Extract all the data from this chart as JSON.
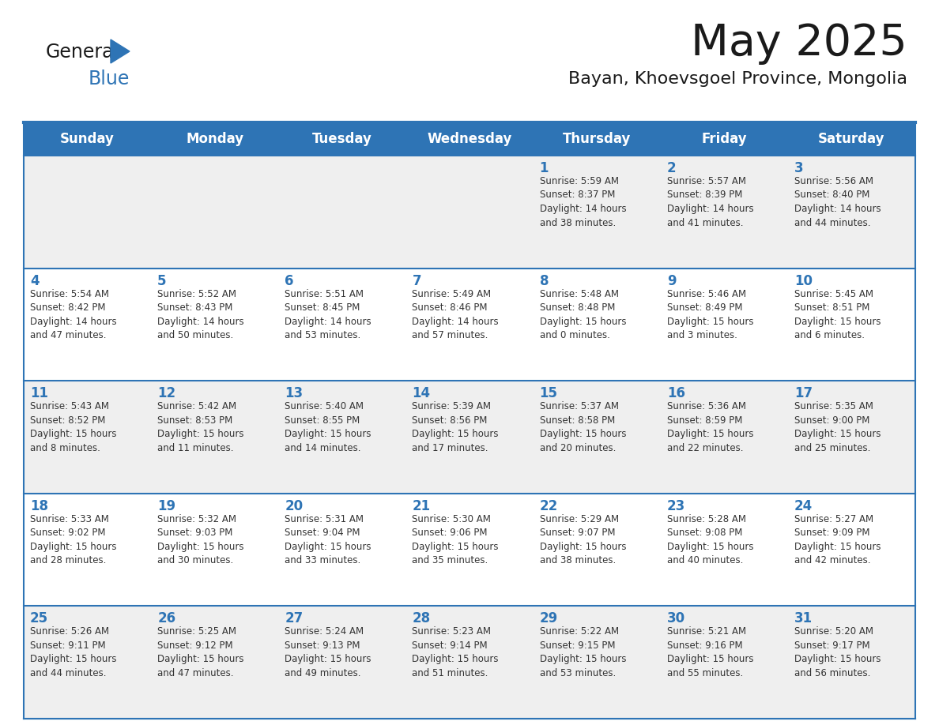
{
  "title": "May 2025",
  "subtitle": "Bayan, Khoevsgoel Province, Mongolia",
  "header_bg_color": "#2E74B5",
  "header_text_color": "#FFFFFF",
  "days_of_week": [
    "Sunday",
    "Monday",
    "Tuesday",
    "Wednesday",
    "Thursday",
    "Friday",
    "Saturday"
  ],
  "row_colors": [
    "#EFEFEF",
    "#FFFFFF"
  ],
  "border_color": "#2E74B5",
  "day_number_color": "#2E74B5",
  "cell_text_color": "#333333",
  "calendar_data": [
    [
      {
        "day": "",
        "info": ""
      },
      {
        "day": "",
        "info": ""
      },
      {
        "day": "",
        "info": ""
      },
      {
        "day": "",
        "info": ""
      },
      {
        "day": "1",
        "info": "Sunrise: 5:59 AM\nSunset: 8:37 PM\nDaylight: 14 hours\nand 38 minutes."
      },
      {
        "day": "2",
        "info": "Sunrise: 5:57 AM\nSunset: 8:39 PM\nDaylight: 14 hours\nand 41 minutes."
      },
      {
        "day": "3",
        "info": "Sunrise: 5:56 AM\nSunset: 8:40 PM\nDaylight: 14 hours\nand 44 minutes."
      }
    ],
    [
      {
        "day": "4",
        "info": "Sunrise: 5:54 AM\nSunset: 8:42 PM\nDaylight: 14 hours\nand 47 minutes."
      },
      {
        "day": "5",
        "info": "Sunrise: 5:52 AM\nSunset: 8:43 PM\nDaylight: 14 hours\nand 50 minutes."
      },
      {
        "day": "6",
        "info": "Sunrise: 5:51 AM\nSunset: 8:45 PM\nDaylight: 14 hours\nand 53 minutes."
      },
      {
        "day": "7",
        "info": "Sunrise: 5:49 AM\nSunset: 8:46 PM\nDaylight: 14 hours\nand 57 minutes."
      },
      {
        "day": "8",
        "info": "Sunrise: 5:48 AM\nSunset: 8:48 PM\nDaylight: 15 hours\nand 0 minutes."
      },
      {
        "day": "9",
        "info": "Sunrise: 5:46 AM\nSunset: 8:49 PM\nDaylight: 15 hours\nand 3 minutes."
      },
      {
        "day": "10",
        "info": "Sunrise: 5:45 AM\nSunset: 8:51 PM\nDaylight: 15 hours\nand 6 minutes."
      }
    ],
    [
      {
        "day": "11",
        "info": "Sunrise: 5:43 AM\nSunset: 8:52 PM\nDaylight: 15 hours\nand 8 minutes."
      },
      {
        "day": "12",
        "info": "Sunrise: 5:42 AM\nSunset: 8:53 PM\nDaylight: 15 hours\nand 11 minutes."
      },
      {
        "day": "13",
        "info": "Sunrise: 5:40 AM\nSunset: 8:55 PM\nDaylight: 15 hours\nand 14 minutes."
      },
      {
        "day": "14",
        "info": "Sunrise: 5:39 AM\nSunset: 8:56 PM\nDaylight: 15 hours\nand 17 minutes."
      },
      {
        "day": "15",
        "info": "Sunrise: 5:37 AM\nSunset: 8:58 PM\nDaylight: 15 hours\nand 20 minutes."
      },
      {
        "day": "16",
        "info": "Sunrise: 5:36 AM\nSunset: 8:59 PM\nDaylight: 15 hours\nand 22 minutes."
      },
      {
        "day": "17",
        "info": "Sunrise: 5:35 AM\nSunset: 9:00 PM\nDaylight: 15 hours\nand 25 minutes."
      }
    ],
    [
      {
        "day": "18",
        "info": "Sunrise: 5:33 AM\nSunset: 9:02 PM\nDaylight: 15 hours\nand 28 minutes."
      },
      {
        "day": "19",
        "info": "Sunrise: 5:32 AM\nSunset: 9:03 PM\nDaylight: 15 hours\nand 30 minutes."
      },
      {
        "day": "20",
        "info": "Sunrise: 5:31 AM\nSunset: 9:04 PM\nDaylight: 15 hours\nand 33 minutes."
      },
      {
        "day": "21",
        "info": "Sunrise: 5:30 AM\nSunset: 9:06 PM\nDaylight: 15 hours\nand 35 minutes."
      },
      {
        "day": "22",
        "info": "Sunrise: 5:29 AM\nSunset: 9:07 PM\nDaylight: 15 hours\nand 38 minutes."
      },
      {
        "day": "23",
        "info": "Sunrise: 5:28 AM\nSunset: 9:08 PM\nDaylight: 15 hours\nand 40 minutes."
      },
      {
        "day": "24",
        "info": "Sunrise: 5:27 AM\nSunset: 9:09 PM\nDaylight: 15 hours\nand 42 minutes."
      }
    ],
    [
      {
        "day": "25",
        "info": "Sunrise: 5:26 AM\nSunset: 9:11 PM\nDaylight: 15 hours\nand 44 minutes."
      },
      {
        "day": "26",
        "info": "Sunrise: 5:25 AM\nSunset: 9:12 PM\nDaylight: 15 hours\nand 47 minutes."
      },
      {
        "day": "27",
        "info": "Sunrise: 5:24 AM\nSunset: 9:13 PM\nDaylight: 15 hours\nand 49 minutes."
      },
      {
        "day": "28",
        "info": "Sunrise: 5:23 AM\nSunset: 9:14 PM\nDaylight: 15 hours\nand 51 minutes."
      },
      {
        "day": "29",
        "info": "Sunrise: 5:22 AM\nSunset: 9:15 PM\nDaylight: 15 hours\nand 53 minutes."
      },
      {
        "day": "30",
        "info": "Sunrise: 5:21 AM\nSunset: 9:16 PM\nDaylight: 15 hours\nand 55 minutes."
      },
      {
        "day": "31",
        "info": "Sunrise: 5:20 AM\nSunset: 9:17 PM\nDaylight: 15 hours\nand 56 minutes."
      }
    ]
  ],
  "figsize": [
    11.88,
    9.18
  ],
  "dpi": 100
}
